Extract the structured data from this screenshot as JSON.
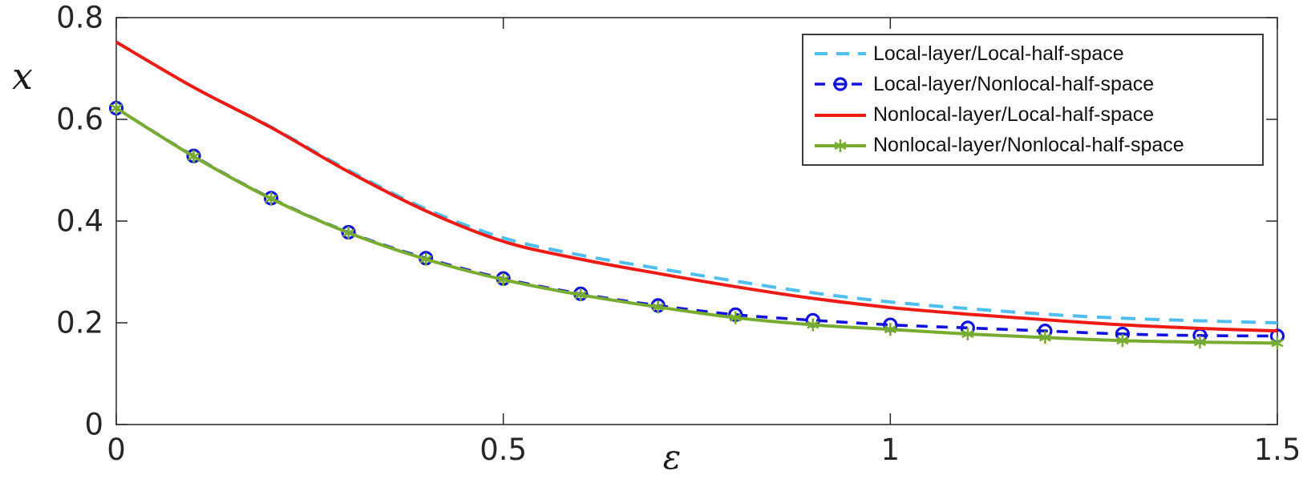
{
  "chart_data": {
    "type": "line",
    "title": "",
    "xlabel": "ε",
    "ylabel": "x",
    "xlim": [
      0,
      1.5
    ],
    "ylim": [
      0,
      0.8
    ],
    "x_ticks": [
      0,
      0.5,
      1,
      1.5
    ],
    "x_tick_labels": [
      "0",
      "0.5",
      "1",
      "1.5"
    ],
    "y_ticks": [
      0,
      0.2,
      0.4,
      0.6,
      0.8
    ],
    "y_tick_labels": [
      "0",
      "0.2",
      "0.4",
      "0.6",
      "0.8"
    ],
    "grid": false,
    "legend_position": "top-right",
    "axis_color": "#262626",
    "background": "#ffffff",
    "x": [
      0,
      0.1,
      0.2,
      0.3,
      0.4,
      0.5,
      0.6,
      0.7,
      0.8,
      0.9,
      1.0,
      1.1,
      1.2,
      1.3,
      1.4,
      1.5
    ],
    "series": [
      {
        "name": "Local-layer/Local-half-space",
        "color": "#4DBEEE",
        "line_style": "dashed",
        "marker": "none",
        "values": [
          0.752,
          0.663,
          0.585,
          0.5,
          0.424,
          0.367,
          0.333,
          0.307,
          0.282,
          0.259,
          0.241,
          0.228,
          0.217,
          0.209,
          0.204,
          0.2
        ]
      },
      {
        "name": "Local-layer/Nonlocal-half-space",
        "color": "#1212DE",
        "line_style": "dashed",
        "marker": "circle",
        "values": [
          0.622,
          0.528,
          0.445,
          0.378,
          0.327,
          0.287,
          0.257,
          0.234,
          0.216,
          0.205,
          0.196,
          0.19,
          0.184,
          0.178,
          0.175,
          0.174
        ]
      },
      {
        "name": "Nonlocal-layer/Local-half-space",
        "color": "#EE1A14",
        "line_style": "solid",
        "marker": "none",
        "values": [
          0.752,
          0.663,
          0.584,
          0.497,
          0.42,
          0.36,
          0.325,
          0.297,
          0.271,
          0.248,
          0.23,
          0.217,
          0.206,
          0.196,
          0.189,
          0.184
        ]
      },
      {
        "name": "Nonlocal-layer/Nonlocal-half-space",
        "color": "#77AC30",
        "line_style": "solid",
        "marker": "asterisk",
        "values": [
          0.622,
          0.527,
          0.444,
          0.377,
          0.325,
          0.285,
          0.255,
          0.231,
          0.21,
          0.196,
          0.187,
          0.178,
          0.171,
          0.165,
          0.162,
          0.16
        ]
      }
    ]
  }
}
